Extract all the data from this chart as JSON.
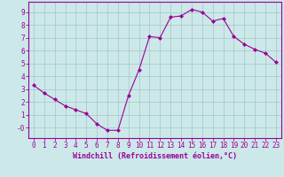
{
  "x": [
    0,
    1,
    2,
    3,
    4,
    5,
    6,
    7,
    8,
    9,
    10,
    11,
    12,
    13,
    14,
    15,
    16,
    17,
    18,
    19,
    20,
    21,
    22,
    23
  ],
  "y": [
    3.3,
    2.7,
    2.2,
    1.7,
    1.4,
    1.1,
    0.3,
    -0.2,
    -0.2,
    2.5,
    4.5,
    7.1,
    7.0,
    8.6,
    8.7,
    9.2,
    9.0,
    8.3,
    8.5,
    7.1,
    6.5,
    6.1,
    5.8,
    5.1
  ],
  "line_color": "#990099",
  "marker": "D",
  "marker_size": 2.0,
  "bg_color": "#cce8e8",
  "grid_color": "#aacccc",
  "xlabel": "Windchill (Refroidissement éolien,°C)",
  "xlim": [
    -0.5,
    23.5
  ],
  "ylim": [
    -0.8,
    9.8
  ],
  "yticks": [
    0,
    1,
    2,
    3,
    4,
    5,
    6,
    7,
    8,
    9
  ],
  "ytick_labels": [
    "-0",
    "1",
    "2",
    "3",
    "4",
    "5",
    "6",
    "7",
    "8",
    "9"
  ],
  "xticks": [
    0,
    1,
    2,
    3,
    4,
    5,
    6,
    7,
    8,
    9,
    10,
    11,
    12,
    13,
    14,
    15,
    16,
    17,
    18,
    19,
    20,
    21,
    22,
    23
  ],
  "tick_color": "#990099",
  "label_color": "#990099",
  "tick_fontsize": 5.5,
  "xlabel_fontsize": 6.0
}
